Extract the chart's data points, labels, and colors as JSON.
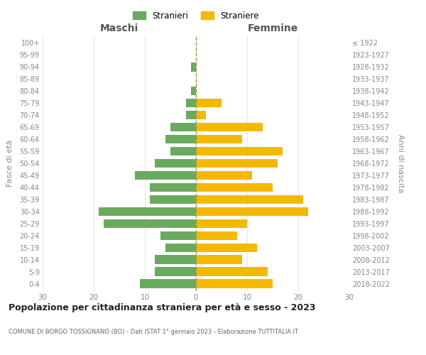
{
  "age_groups": [
    "0-4",
    "5-9",
    "10-14",
    "15-19",
    "20-24",
    "25-29",
    "30-34",
    "35-39",
    "40-44",
    "45-49",
    "50-54",
    "55-59",
    "60-64",
    "65-69",
    "70-74",
    "75-79",
    "80-84",
    "85-89",
    "90-94",
    "95-99",
    "100+"
  ],
  "birth_years": [
    "2018-2022",
    "2013-2017",
    "2008-2012",
    "2003-2007",
    "1998-2002",
    "1993-1997",
    "1988-1992",
    "1983-1987",
    "1978-1982",
    "1973-1977",
    "1968-1972",
    "1963-1967",
    "1958-1962",
    "1953-1957",
    "1948-1952",
    "1943-1947",
    "1938-1942",
    "1933-1937",
    "1928-1932",
    "1923-1927",
    "≤ 1922"
  ],
  "males": [
    11,
    8,
    8,
    6,
    7,
    18,
    19,
    9,
    9,
    12,
    8,
    5,
    6,
    5,
    2,
    2,
    1,
    0,
    1,
    0,
    0
  ],
  "females": [
    15,
    14,
    9,
    12,
    8,
    10,
    22,
    21,
    15,
    11,
    16,
    17,
    9,
    13,
    2,
    5,
    0,
    0,
    0,
    0,
    0
  ],
  "color_males": "#6aaa5e",
  "color_females": "#f5b800",
  "xlim": 30,
  "title": "Popolazione per cittadinanza straniera per età e sesso - 2023",
  "subtitle": "COMUNE DI BORGO TOSSIGNANO (BO) - Dati ISTAT 1° gennaio 2023 - Elaborazione TUTTITALIA.IT",
  "legend_males": "Stranieri",
  "legend_females": "Straniere",
  "ylabel_left": "Fasce di età",
  "ylabel_right": "Anni di nascita",
  "xlabel_left": "Maschi",
  "xlabel_right": "Femmine",
  "background_color": "#ffffff",
  "grid_color": "#cccccc"
}
